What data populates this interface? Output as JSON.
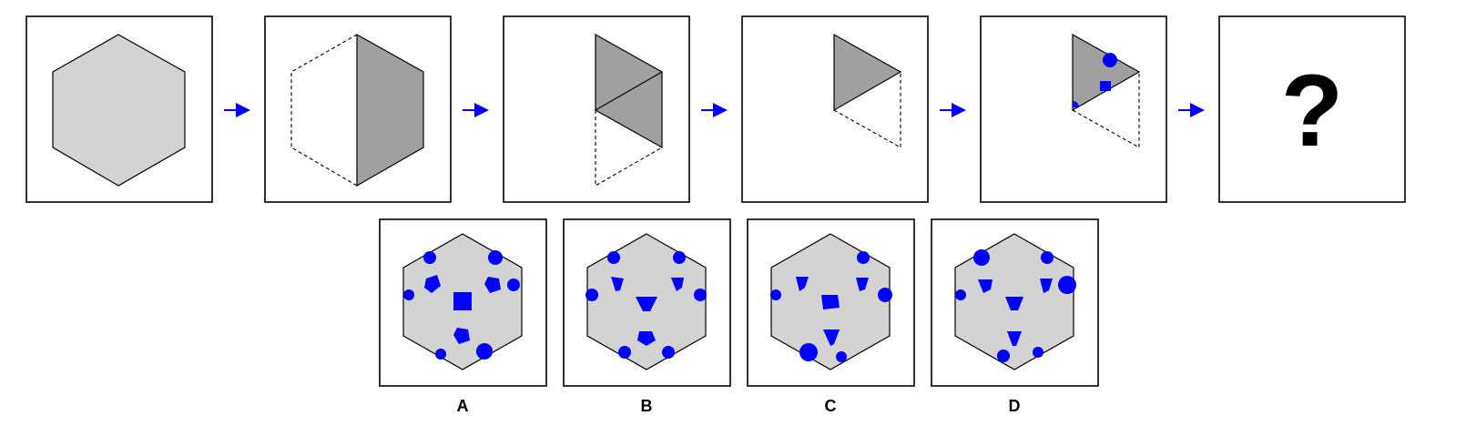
{
  "puzzle": {
    "question_mark": "?",
    "colors": {
      "panel_fill": "#ffffff",
      "panel_border": "#000000",
      "light_gray": "#d3d3d3",
      "dark_gray": "#a0a0a0",
      "accent_blue": "#0000ff"
    },
    "steps": [
      {
        "name": "full-hexagon"
      },
      {
        "name": "folded-half"
      },
      {
        "name": "folded-third"
      },
      {
        "name": "folded-sixth"
      },
      {
        "name": "punched-sixth"
      },
      {
        "name": "unknown-result"
      }
    ]
  },
  "options": [
    {
      "label": "A"
    },
    {
      "label": "B"
    },
    {
      "label": "C"
    },
    {
      "label": "D"
    }
  ]
}
